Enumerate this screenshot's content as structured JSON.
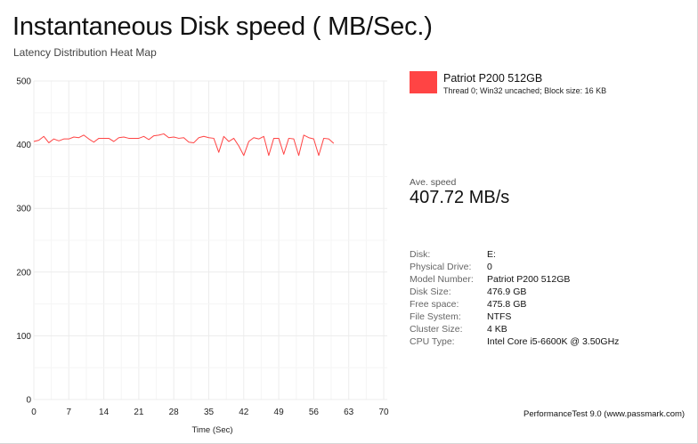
{
  "header": {
    "title": "Instantaneous Disk speed ( MB/Sec.)",
    "subtitle": "Latency Distribution Heat Map"
  },
  "chart_data": {
    "type": "line",
    "xlabel": "Time (Sec)",
    "ylabel": "",
    "xlim": [
      0,
      70
    ],
    "ylim": [
      0,
      500
    ],
    "x_ticks": [
      0,
      7,
      14,
      21,
      28,
      35,
      42,
      49,
      56,
      63,
      70
    ],
    "y_ticks": [
      0,
      100,
      200,
      300,
      400,
      500
    ],
    "grid": true,
    "series": [
      {
        "name": "Patriot P200 512GB",
        "color": "#ff4444",
        "x": [
          0,
          1,
          2,
          3,
          4,
          5,
          6,
          7,
          8,
          9,
          10,
          11,
          12,
          13,
          14,
          15,
          16,
          17,
          18,
          19,
          20,
          21,
          22,
          23,
          24,
          25,
          26,
          27,
          28,
          29,
          30,
          31,
          32,
          33,
          34,
          35,
          36,
          37,
          38,
          39,
          40,
          41,
          42,
          43,
          44,
          45,
          46,
          47,
          48,
          49,
          50,
          51,
          52,
          53,
          54,
          55,
          56,
          57,
          58,
          59,
          60
        ],
        "y": [
          405,
          407,
          413,
          403,
          409,
          406,
          409,
          409,
          412,
          411,
          415,
          409,
          404,
          410,
          410,
          410,
          405,
          411,
          412,
          410,
          410,
          410,
          413,
          408,
          414,
          415,
          417,
          411,
          412,
          410,
          411,
          404,
          403,
          411,
          413,
          411,
          410,
          388,
          413,
          405,
          410,
          398,
          383,
          405,
          411,
          409,
          413,
          383,
          410,
          410,
          385,
          410,
          409,
          383,
          415,
          411,
          409,
          383,
          410,
          409,
          402
        ]
      }
    ]
  },
  "legend": {
    "color": "#ff4444",
    "name": "Patriot P200 512GB",
    "description": "Thread 0; Win32 uncached; Block size: 16 KB"
  },
  "average": {
    "label": "Ave. speed",
    "value": "407.72 MB/s"
  },
  "details": [
    {
      "label": "Disk:",
      "value": "E:"
    },
    {
      "label": "Physical Drive:",
      "value": "0"
    },
    {
      "label": "Model Number:",
      "value": "Patriot P200 512GB"
    },
    {
      "label": "Disk Size:",
      "value": "476.9 GB"
    },
    {
      "label": "Free space:",
      "value": "475.8 GB"
    },
    {
      "label": "File System:",
      "value": "NTFS"
    },
    {
      "label": "Cluster Size:",
      "value": "4 KB"
    },
    {
      "label": "CPU Type:",
      "value": "Intel Core i5-6600K @ 3.50GHz"
    }
  ],
  "footer": "PerformanceTest 9.0 (www.passmark.com)"
}
